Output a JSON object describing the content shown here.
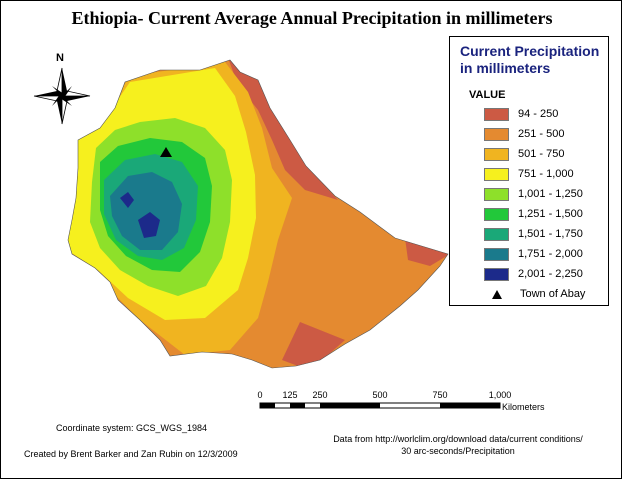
{
  "title": "Ethiopia- Current Average Annual Precipitation in millimeters",
  "north_label": "N",
  "legend": {
    "title": "Current Precipitation in millimeters",
    "value_heading": "VALUE",
    "classes": [
      {
        "label": "94 - 250",
        "color": "#cc5a44"
      },
      {
        "label": "251 - 500",
        "color": "#e48a30"
      },
      {
        "label": "501 - 750",
        "color": "#f0b420"
      },
      {
        "label": "751 - 1,000",
        "color": "#f6f01e"
      },
      {
        "label": "1,001 - 1,250",
        "color": "#8ee02a"
      },
      {
        "label": "1,251 - 1,500",
        "color": "#22c83a"
      },
      {
        "label": "1,501 - 1,750",
        "color": "#1aa878"
      },
      {
        "label": "1,751 - 2,000",
        "color": "#1a7a8c"
      },
      {
        "label": "2,001 - 2,250",
        "color": "#1c2a8a"
      }
    ],
    "point_symbol_label": "Town of Abay"
  },
  "scale_bar": {
    "ticks": [
      "0",
      "125",
      "250",
      "500",
      "750",
      "1,000"
    ],
    "unit": "Kilometers"
  },
  "notes": {
    "coordinate_system": "Coordinate system: GCS_WGS_1984",
    "credits": "Created by Brent Barker and Zan Rubin on 12/3/2009",
    "source_line1": "Data from http://worlclim.org/download data/current conditions/",
    "source_line2": "30 arc-seconds/Precipitation"
  }
}
